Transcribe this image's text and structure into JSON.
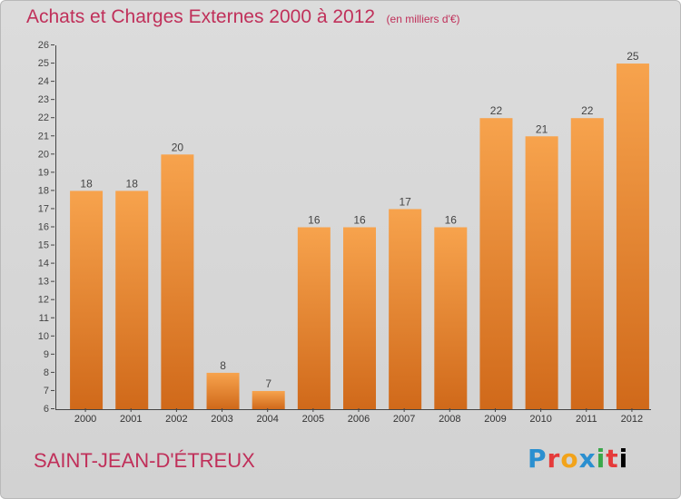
{
  "header": {
    "title": "Achats et Charges Externes 2000 à 2012",
    "unit": "(en milliers d'€)"
  },
  "footer": {
    "town": "SAINT-JEAN-D'ÉTREUX",
    "logo_letters": [
      "P",
      "r",
      "o",
      "x",
      "i",
      "t",
      "i"
    ]
  },
  "colors": {
    "title": "#c0305a",
    "bar_top": "#f7a34d",
    "bar_bottom": "#d0691a",
    "background": "#d6d6d6"
  },
  "chart_data": {
    "type": "bar",
    "title": "Achats et Charges Externes 2000 à 2012",
    "subtitle": "(en milliers d'€)",
    "xlabel": "",
    "ylabel": "",
    "categories": [
      "2000",
      "2001",
      "2002",
      "2003",
      "2004",
      "2005",
      "2006",
      "2007",
      "2008",
      "2009",
      "2010",
      "2011",
      "2012"
    ],
    "values": [
      18,
      18,
      20,
      8,
      7,
      16,
      16,
      17,
      16,
      22,
      21,
      22,
      25
    ],
    "data_labels": [
      "18",
      "18",
      "20",
      "8",
      "7",
      "16",
      "16",
      "17",
      "16",
      "22",
      "21",
      "22",
      "25"
    ],
    "ylim": [
      6,
      26
    ],
    "yticks": [
      6,
      7,
      8,
      9,
      10,
      11,
      12,
      13,
      14,
      15,
      16,
      17,
      18,
      19,
      20,
      21,
      22,
      23,
      24,
      25,
      26
    ],
    "grid": false,
    "legend": "none"
  }
}
